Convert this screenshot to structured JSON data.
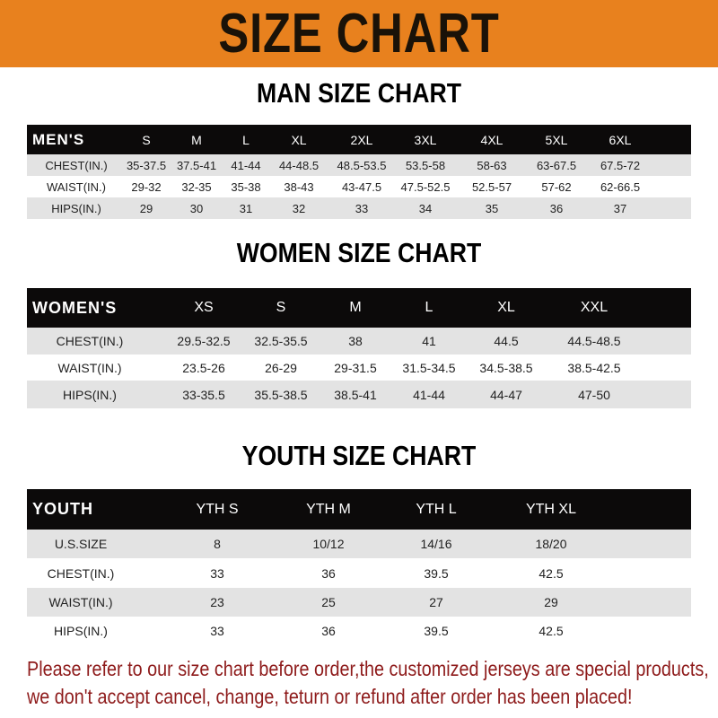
{
  "banner": {
    "title": "SIZE CHART",
    "color": "#e8811e"
  },
  "men": {
    "title": "MAN SIZE CHART",
    "header": [
      "MEN'S",
      "S",
      "M",
      "L",
      "XL",
      "2XL",
      "3XL",
      "4XL",
      "5XL",
      "6XL"
    ],
    "rows": [
      [
        "CHEST(IN.)",
        "35-37.5",
        "37.5-41",
        "41-44",
        "44-48.5",
        "48.5-53.5",
        "53.5-58",
        "58-63",
        "63-67.5",
        "67.5-72"
      ],
      [
        "WAIST(IN.)",
        "29-32",
        "32-35",
        "35-38",
        "38-43",
        "43-47.5",
        "47.5-52.5",
        "52.5-57",
        "57-62",
        "62-66.5"
      ],
      [
        "HIPS(IN.)",
        "29",
        "30",
        "31",
        "32",
        "33",
        "34",
        "35",
        "36",
        "37"
      ]
    ]
  },
  "women": {
    "title": "WOMEN SIZE CHART",
    "header": [
      "WOMEN'S",
      "XS",
      "S",
      "M",
      "L",
      "XL",
      "XXL"
    ],
    "rows": [
      [
        "CHEST(IN.)",
        "29.5-32.5",
        "32.5-35.5",
        "38",
        "41",
        "44.5",
        "44.5-48.5"
      ],
      [
        "WAIST(IN.)",
        "23.5-26",
        "26-29",
        "29-31.5",
        "31.5-34.5",
        "34.5-38.5",
        "38.5-42.5"
      ],
      [
        "HIPS(IN.)",
        "33-35.5",
        "35.5-38.5",
        "38.5-41",
        "41-44",
        "44-47",
        "47-50"
      ]
    ]
  },
  "youth": {
    "title": "YOUTH SIZE CHART",
    "header": [
      "YOUTH",
      "YTH S",
      "YTH M",
      "YTH L",
      "YTH XL"
    ],
    "rows": [
      [
        "U.S.SIZE",
        "8",
        "10/12",
        "14/16",
        "18/20"
      ],
      [
        "CHEST(IN.)",
        "33",
        "36",
        "39.5",
        "42.5"
      ],
      [
        "WAIST(IN.)",
        "23",
        "25",
        "27",
        "29"
      ],
      [
        "HIPS(IN.)",
        "33",
        "36",
        "39.5",
        "42.5"
      ]
    ]
  },
  "footer": {
    "line1": "Please refer to our size chart before order,the customized jerseys are special products,",
    "line2": "we don't accept cancel, change, teturn or refund after order has been placed!",
    "color": "#8e1b1b"
  }
}
